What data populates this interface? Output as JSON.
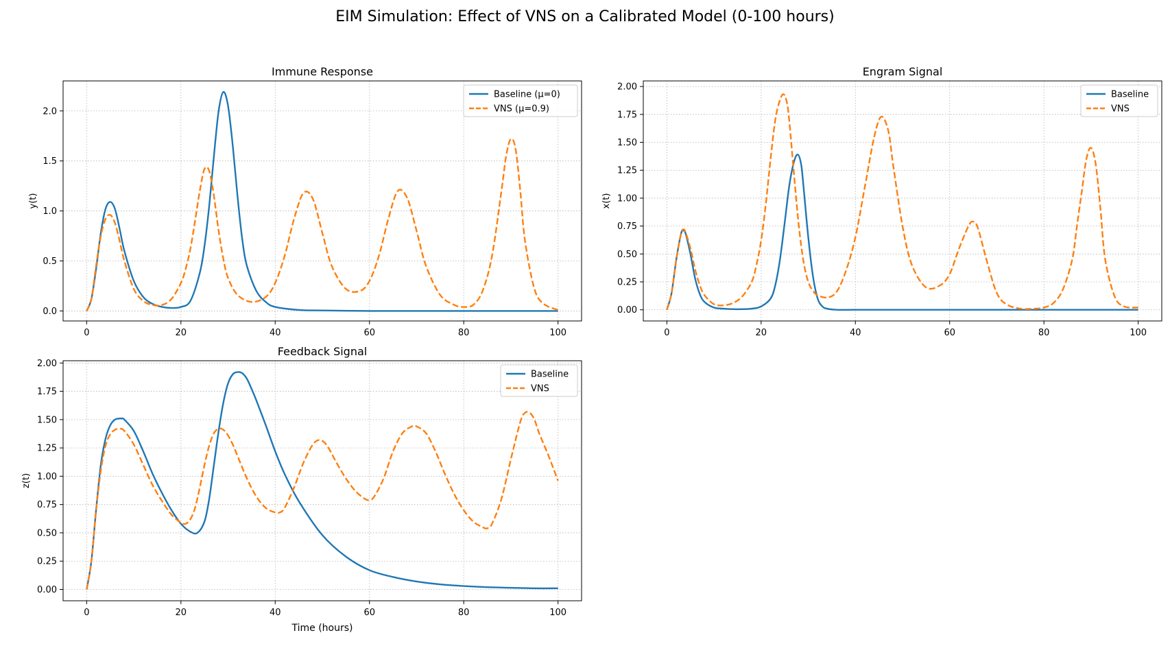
{
  "figure": {
    "title": "EIM Simulation: Effect of VNS on a Calibrated Model (0-100 hours)"
  },
  "colors": {
    "baseline": "#1f77b4",
    "vns": "#ff7f0e",
    "grid": "#b0b0b0"
  },
  "chart_data": [
    {
      "id": "immune",
      "type": "line",
      "title": "Immune Response",
      "xlabel": "",
      "ylabel": "y(t)",
      "xlim": [
        -5,
        105
      ],
      "ylim": [
        -0.1,
        2.3
      ],
      "xticks": [
        0,
        20,
        40,
        60,
        80,
        100
      ],
      "xtick_labels": [
        "0",
        "20",
        "40",
        "60",
        "80",
        "100"
      ],
      "yticks": [
        0,
        0.5,
        1.0,
        1.5,
        2.0
      ],
      "ytick_labels": [
        "0.0",
        "0.5",
        "1.0",
        "1.5",
        "2.0"
      ],
      "grid": true,
      "legend_position": "upper right",
      "series": [
        {
          "name": "Baseline (μ=0)",
          "style": "solid",
          "x": [
            0,
            1,
            2,
            3,
            4,
            5,
            6,
            7,
            8,
            10,
            12,
            14,
            16,
            18,
            20,
            22,
            24,
            25,
            26,
            27,
            28,
            29,
            30,
            31,
            32,
            33,
            34,
            36,
            38,
            40,
            45,
            50,
            60,
            70,
            80,
            90,
            100
          ],
          "y": [
            0,
            0.12,
            0.42,
            0.78,
            1.02,
            1.09,
            1.02,
            0.82,
            0.6,
            0.3,
            0.14,
            0.07,
            0.04,
            0.03,
            0.04,
            0.1,
            0.38,
            0.65,
            1.05,
            1.55,
            2.0,
            2.19,
            2.05,
            1.65,
            1.15,
            0.72,
            0.45,
            0.2,
            0.09,
            0.04,
            0.01,
            0.005,
            0,
            0,
            0,
            0,
            0
          ]
        },
        {
          "name": "VNS (μ=0.9)",
          "style": "dashed",
          "x": [
            0,
            1,
            2,
            3,
            4,
            5,
            6,
            7,
            8,
            10,
            12,
            14,
            16,
            18,
            20,
            21,
            22,
            23,
            24,
            25,
            26,
            27,
            28,
            29,
            30,
            32,
            35,
            38,
            40,
            42,
            44,
            46,
            48,
            50,
            52,
            55,
            58,
            60,
            62,
            64,
            66,
            68,
            70,
            72,
            75,
            78,
            80,
            82,
            84,
            86,
            88,
            89,
            90,
            91,
            92,
            93,
            95,
            97,
            100
          ],
          "y": [
            0,
            0.12,
            0.45,
            0.75,
            0.92,
            0.96,
            0.88,
            0.7,
            0.5,
            0.22,
            0.1,
            0.06,
            0.06,
            0.12,
            0.28,
            0.42,
            0.62,
            0.9,
            1.2,
            1.42,
            1.4,
            1.15,
            0.8,
            0.52,
            0.33,
            0.16,
            0.09,
            0.14,
            0.28,
            0.55,
            0.92,
            1.18,
            1.12,
            0.78,
            0.45,
            0.22,
            0.2,
            0.3,
            0.55,
            0.92,
            1.2,
            1.13,
            0.8,
            0.45,
            0.16,
            0.06,
            0.04,
            0.06,
            0.2,
            0.55,
            1.2,
            1.55,
            1.72,
            1.62,
            1.2,
            0.7,
            0.22,
            0.07,
            0.01
          ]
        }
      ]
    },
    {
      "id": "engram",
      "type": "line",
      "title": "Engram Signal",
      "xlabel": "",
      "ylabel": "x(t)",
      "xlim": [
        -5,
        105
      ],
      "ylim": [
        -0.1,
        2.05
      ],
      "xticks": [
        0,
        20,
        40,
        60,
        80,
        100
      ],
      "xtick_labels": [
        "0",
        "20",
        "40",
        "60",
        "80",
        "100"
      ],
      "yticks": [
        0,
        0.25,
        0.5,
        0.75,
        1.0,
        1.25,
        1.5,
        1.75,
        2.0
      ],
      "ytick_labels": [
        "0.00",
        "0.25",
        "0.50",
        "0.75",
        "1.00",
        "1.25",
        "1.50",
        "1.75",
        "2.00"
      ],
      "grid": true,
      "legend_position": "upper right",
      "series": [
        {
          "name": "Baseline",
          "style": "solid",
          "x": [
            0,
            1,
            2,
            3,
            3.5,
            4,
            5,
            6,
            7,
            8,
            10,
            12,
            15,
            18,
            20,
            22,
            23,
            24,
            25,
            26,
            27,
            27.8,
            28.5,
            29,
            30,
            31,
            32,
            33,
            34,
            36,
            40,
            50,
            60,
            70,
            80,
            90,
            100
          ],
          "y": [
            0,
            0.15,
            0.45,
            0.68,
            0.71,
            0.68,
            0.5,
            0.28,
            0.14,
            0.07,
            0.02,
            0.01,
            0.005,
            0.01,
            0.03,
            0.1,
            0.22,
            0.45,
            0.78,
            1.12,
            1.33,
            1.39,
            1.3,
            1.1,
            0.65,
            0.3,
            0.1,
            0.03,
            0.01,
            0,
            0,
            0,
            0,
            0,
            0,
            0,
            0
          ]
        },
        {
          "name": "VNS",
          "style": "dashed",
          "x": [
            0,
            1,
            2,
            3,
            3.5,
            4,
            5,
            6,
            7,
            8,
            10,
            12,
            14,
            16,
            18,
            19,
            20,
            21,
            22,
            23,
            24,
            24.8,
            25.5,
            26,
            27,
            28,
            29,
            30,
            31,
            32,
            34,
            36,
            38,
            40,
            42,
            44,
            45.5,
            47,
            48,
            50,
            52,
            55,
            58,
            60,
            62,
            64,
            65,
            66,
            68,
            70,
            72,
            75,
            78,
            80,
            82,
            84,
            86,
            87,
            88,
            89,
            90,
            91,
            92,
            93,
            95,
            97,
            100
          ],
          "y": [
            0,
            0.15,
            0.45,
            0.68,
            0.72,
            0.69,
            0.55,
            0.36,
            0.22,
            0.13,
            0.05,
            0.04,
            0.06,
            0.12,
            0.25,
            0.4,
            0.62,
            0.95,
            1.35,
            1.7,
            1.88,
            1.93,
            1.85,
            1.68,
            1.2,
            0.75,
            0.43,
            0.25,
            0.17,
            0.13,
            0.11,
            0.16,
            0.35,
            0.65,
            1.1,
            1.55,
            1.73,
            1.6,
            1.3,
            0.75,
            0.4,
            0.2,
            0.22,
            0.32,
            0.55,
            0.75,
            0.79,
            0.73,
            0.42,
            0.15,
            0.05,
            0.01,
            0.01,
            0.02,
            0.06,
            0.18,
            0.45,
            0.75,
            1.05,
            1.35,
            1.45,
            1.3,
            0.9,
            0.45,
            0.12,
            0.03,
            0.02
          ]
        }
      ]
    },
    {
      "id": "feedback",
      "type": "line",
      "title": "Feedback Signal",
      "xlabel": "Time (hours)",
      "ylabel": "z(t)",
      "xlim": [
        -5,
        105
      ],
      "ylim": [
        -0.1,
        2.02
      ],
      "xticks": [
        0,
        20,
        40,
        60,
        80,
        100
      ],
      "xtick_labels": [
        "0",
        "20",
        "40",
        "60",
        "80",
        "100"
      ],
      "yticks": [
        0,
        0.25,
        0.5,
        0.75,
        1.0,
        1.25,
        1.5,
        1.75,
        2.0
      ],
      "ytick_labels": [
        "0.00",
        "0.25",
        "0.50",
        "0.75",
        "1.00",
        "1.25",
        "1.50",
        "1.75",
        "2.00"
      ],
      "grid": true,
      "legend_position": "upper right",
      "series": [
        {
          "name": "Baseline",
          "style": "solid",
          "x": [
            0,
            1,
            2,
            3,
            4,
            5,
            6,
            7,
            7.5,
            8,
            10,
            12,
            14,
            16,
            18,
            20,
            22,
            23.5,
            25,
            26,
            27,
            28,
            29,
            30,
            31,
            32,
            33,
            34,
            35,
            36,
            38,
            40,
            42,
            45,
            50,
            55,
            60,
            65,
            70,
            75,
            80,
            85,
            90,
            95,
            100
          ],
          "y": [
            0,
            0.25,
            0.7,
            1.1,
            1.33,
            1.45,
            1.5,
            1.51,
            1.51,
            1.5,
            1.4,
            1.22,
            1.02,
            0.85,
            0.7,
            0.58,
            0.51,
            0.5,
            0.6,
            0.8,
            1.1,
            1.4,
            1.65,
            1.82,
            1.9,
            1.92,
            1.91,
            1.86,
            1.77,
            1.67,
            1.45,
            1.22,
            1.02,
            0.78,
            0.48,
            0.29,
            0.17,
            0.11,
            0.07,
            0.045,
            0.03,
            0.02,
            0.015,
            0.01,
            0.01
          ]
        },
        {
          "name": "VNS",
          "style": "dashed",
          "x": [
            0,
            1,
            2,
            3,
            4,
            5,
            6,
            7,
            8,
            10,
            12,
            14,
            16,
            18,
            20,
            21,
            22,
            23,
            24,
            25,
            26,
            27,
            28,
            29,
            30,
            31,
            32,
            34,
            36,
            38,
            40,
            41,
            42,
            44,
            46,
            48,
            49.5,
            51,
            53,
            55,
            57,
            59,
            60,
            61,
            63,
            65,
            67,
            69,
            70,
            72,
            74,
            76,
            78,
            80,
            82,
            84,
            85,
            86,
            88,
            90,
            92,
            93,
            94,
            95,
            96,
            98,
            100
          ],
          "y": [
            0,
            0.25,
            0.7,
            1.05,
            1.27,
            1.37,
            1.41,
            1.42,
            1.4,
            1.28,
            1.1,
            0.92,
            0.78,
            0.66,
            0.59,
            0.58,
            0.62,
            0.72,
            0.9,
            1.1,
            1.27,
            1.38,
            1.42,
            1.41,
            1.36,
            1.28,
            1.18,
            0.98,
            0.82,
            0.72,
            0.68,
            0.68,
            0.72,
            0.9,
            1.12,
            1.28,
            1.32,
            1.27,
            1.12,
            0.98,
            0.87,
            0.8,
            0.79,
            0.82,
            0.98,
            1.22,
            1.38,
            1.44,
            1.44,
            1.38,
            1.22,
            1.02,
            0.84,
            0.7,
            0.6,
            0.55,
            0.54,
            0.58,
            0.8,
            1.15,
            1.48,
            1.56,
            1.56,
            1.5,
            1.38,
            1.18,
            0.96
          ]
        }
      ]
    }
  ]
}
